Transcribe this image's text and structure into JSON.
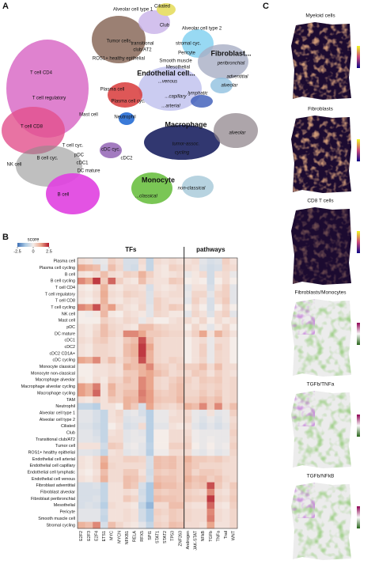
{
  "panel_a": {
    "label": "A",
    "clusters": [
      "Alveolar cell type 1",
      "Ciliated",
      "Club",
      "Alveolar cell type 2",
      "Tumor cells",
      "transitional",
      "club/AT2",
      "stromal cyc.",
      "Fibroblast...",
      "peribronchial",
      "ROS1+ healthy epithelial",
      "Pericyte",
      "Smooth muscle",
      "Mesothelial",
      "adventitial",
      "Endothelial cell...",
      "alveolar",
      "...venous",
      "T cell CD4",
      "Plasma cell",
      "...capillary",
      "T cell regulatory",
      "Plasma cell cyc.",
      "...arterial",
      "lymphatic",
      "Neutrophil",
      "Mast cell",
      "T cell CD8",
      "T cell cyc.",
      "Macrophage",
      "pDC",
      "cDC cyc.",
      "alveolar",
      "tumor-assoc.",
      "NK cell",
      "cDC1",
      "cycling",
      "B cell cyc.",
      "DC mature",
      "cDC2",
      "Monocyte",
      "non-classical",
      "...classical",
      "B cell"
    ]
  },
  "panel_b": {
    "label": "B",
    "colorbar_title": "score",
    "colorbar_lim": [
      -2.5,
      2.5
    ],
    "colorbar_ticks": [
      -2.5,
      0,
      2.5
    ],
    "colormap": [
      "#3a6db3",
      "#a9c8e3",
      "#f5ede9",
      "#eaa48a",
      "#b2182b"
    ],
    "column_groups": [
      {
        "name": "TFs",
        "columns": [
          "E2F2",
          "E2F3",
          "E2F4",
          "ETS1",
          "MYC",
          "MYCN",
          "NFKB1",
          "RELA",
          "RFX5",
          "SPI1",
          "STAT1",
          "STAT2",
          "TP53",
          "ZNF263"
        ]
      },
      {
        "name": "pathways",
        "columns": [
          "Androgen",
          "JAK-STAT",
          "NFkB",
          "TGFb",
          "TNFa",
          "Trail",
          "WNT"
        ]
      }
    ],
    "rows": [
      "Plasma cell",
      "Plasma cell cycling",
      "B cell",
      "B cell cycling",
      "T cell CD4",
      "T cell regulatory",
      "T cell CD8",
      "T cell cycling",
      "NK cell",
      "Mast cell",
      "pDC",
      "DC mature",
      "cDC1",
      "cDC2",
      "cDC2 CD1A+",
      "cDC cycling",
      "Monocyte classical",
      "Monocyte non-classical",
      "Macrophage alveolar",
      "Macrophage alveolar cycling",
      "Macrophage cycling",
      "TAM",
      "Neutrophil",
      "Alveolar cell type 1",
      "Alveolar cell type 2",
      "Ciliated",
      "Club",
      "Transitional club/AT2",
      "Tumor cell",
      "ROS1+ healthy epithelial",
      "Endothelial cell arterial",
      "Endothelial cell capillary",
      "Endothelial cell lymphatic",
      "Endothelial cell venous",
      "Fibroblast adventitial",
      "Fibroblast alveolar",
      "Fibroblast peribronchial",
      "Mesothelial",
      "Pericyte",
      "Smooth muscle cell",
      "Stromal cycling"
    ],
    "values": [
      [
        0.3,
        0.2,
        -0.3,
        -0.2,
        0.5,
        0.3,
        -0.5,
        -0.5,
        0.3,
        -0.8,
        0.3,
        0.2,
        0.3,
        0.2,
        0.2,
        0.3,
        -0.3,
        -0.5,
        -0.4,
        0.5,
        0.2
      ],
      [
        1.2,
        1,
        0.8,
        -0.3,
        0.8,
        0.4,
        -0.5,
        -0.6,
        0.2,
        -0.8,
        0.2,
        0.1,
        0.5,
        0.4,
        0.3,
        0.2,
        -0.4,
        -0.6,
        -0.5,
        0.4,
        0.3
      ],
      [
        0.2,
        0.1,
        0.3,
        0.8,
        0.3,
        0.2,
        0.5,
        0.4,
        1,
        0.5,
        0.2,
        0.1,
        0.2,
        0.3,
        -0.2,
        0.1,
        0.3,
        -0.6,
        0.2,
        0.3,
        -0.2
      ],
      [
        1.5,
        1.2,
        2.2,
        0.6,
        1.8,
        0.5,
        0.2,
        0.1,
        0.8,
        0.3,
        0.2,
        0.2,
        0.6,
        0.5,
        0,
        0.1,
        0,
        -0.6,
        0,
        0.3,
        0
      ],
      [
        0.1,
        0,
        0.2,
        1,
        0.2,
        0.1,
        0.3,
        0.3,
        0.2,
        -0.5,
        0.2,
        0.1,
        0.2,
        0.3,
        -0.3,
        0.2,
        0.2,
        -0.5,
        0.2,
        0.5,
        -0.3
      ],
      [
        0.2,
        0.1,
        0.3,
        1.1,
        0.3,
        0.2,
        0.5,
        0.4,
        0.3,
        -0.4,
        0.3,
        0.2,
        0.3,
        0.3,
        -0.2,
        0.4,
        0.4,
        -0.3,
        0.4,
        0.5,
        -0.3
      ],
      [
        0.1,
        0,
        0.2,
        1,
        0.2,
        0.1,
        0.3,
        0.2,
        0.3,
        -0.4,
        0.5,
        0.3,
        0.2,
        0.2,
        -0.3,
        0.5,
        0.2,
        -0.5,
        0.3,
        0.6,
        -0.3
      ],
      [
        1.5,
        1.3,
        2,
        0.8,
        1.3,
        0.4,
        0.2,
        0.1,
        0.4,
        -0.3,
        0.5,
        0.3,
        0.6,
        0.5,
        0,
        0.3,
        0,
        -0.5,
        0,
        0.4,
        0
      ],
      [
        0,
        -0.1,
        0.1,
        0.9,
        0.1,
        0,
        0.3,
        0.2,
        0.1,
        -0.3,
        0.4,
        0.3,
        0.1,
        0.1,
        -0.3,
        0.4,
        0.2,
        -0.4,
        0.3,
        0.5,
        -0.3
      ],
      [
        0,
        0,
        0,
        0.5,
        0.3,
        0.2,
        0.4,
        0.3,
        -0.2,
        0.2,
        0,
        0,
        0.2,
        0.3,
        0.3,
        0.1,
        0.4,
        0,
        0.3,
        0.1,
        0.2
      ],
      [
        0.2,
        0.1,
        0.3,
        0.8,
        0.4,
        0.3,
        0.2,
        0.1,
        0.8,
        0.8,
        0.5,
        0.4,
        0.3,
        0.3,
        0,
        0.4,
        0.1,
        -0.3,
        0.1,
        0.4,
        0
      ],
      [
        0.2,
        0.1,
        0.4,
        0.8,
        0.5,
        0.3,
        1.5,
        1.5,
        1.2,
        0.6,
        0.6,
        0.5,
        0.4,
        0.4,
        0.2,
        0.5,
        1.2,
        0.2,
        1,
        0.5,
        0.2
      ],
      [
        0.3,
        0.2,
        0.5,
        0.6,
        0.3,
        0.2,
        0.6,
        0.8,
        2,
        0.8,
        0.4,
        0.3,
        0.3,
        0.3,
        0,
        0.2,
        0.3,
        -0.2,
        0.3,
        0.3,
        0
      ],
      [
        0.2,
        0.1,
        0.4,
        0.4,
        0.3,
        0.2,
        0.8,
        1,
        2.2,
        1.2,
        0.4,
        0.3,
        0.3,
        0.3,
        0,
        0.2,
        0.5,
        -0.2,
        0.5,
        0.3,
        0
      ],
      [
        0.2,
        0.1,
        0.4,
        0.4,
        0.3,
        0.2,
        0.8,
        1,
        2.2,
        1,
        0.4,
        0.3,
        0.3,
        0.3,
        0,
        0.2,
        0.5,
        -0.2,
        0.4,
        0.3,
        0
      ],
      [
        1.2,
        1,
        1.5,
        0.4,
        0.8,
        0.3,
        0.6,
        0.8,
        2,
        1,
        0.4,
        0.3,
        0.5,
        0.4,
        0,
        0.2,
        0.4,
        -0.2,
        0.4,
        0.3,
        0
      ],
      [
        0,
        0,
        0.2,
        0.2,
        0.3,
        0.2,
        1,
        0.8,
        1,
        1.5,
        0.6,
        0.5,
        0.3,
        0.5,
        0.5,
        0.5,
        0.8,
        0.3,
        0.8,
        0.3,
        0.3
      ],
      [
        0,
        0,
        0.2,
        0.2,
        0.3,
        0.2,
        0.6,
        0.6,
        1,
        1.2,
        0.8,
        0.6,
        0.3,
        0.4,
        0.3,
        0.6,
        0.5,
        0.2,
        0.5,
        0.3,
        0.2
      ],
      [
        0.1,
        0,
        0.3,
        0.1,
        0.5,
        0.4,
        0.8,
        0.6,
        1.5,
        1.2,
        0.4,
        0.3,
        0.5,
        0.7,
        0.5,
        0.3,
        0.6,
        0.5,
        0.6,
        0.3,
        0.4
      ],
      [
        1.3,
        1,
        1.6,
        0.2,
        1,
        0.5,
        0.6,
        0.6,
        1.5,
        1.2,
        0.4,
        0.3,
        0.6,
        0.8,
        0.4,
        0.3,
        0.5,
        0.4,
        0.5,
        0.3,
        0.4
      ],
      [
        1.3,
        1,
        1.8,
        0.2,
        0.9,
        0.5,
        0.8,
        0.8,
        1.6,
        1.3,
        0.6,
        0.5,
        0.6,
        0.8,
        0.4,
        0.4,
        0.6,
        0.4,
        0.6,
        0.3,
        0.4
      ],
      [
        0.2,
        0.1,
        0.4,
        0.2,
        0.6,
        0.5,
        1,
        0.9,
        1.5,
        1.3,
        0.7,
        0.6,
        0.6,
        0.9,
        0.5,
        0.5,
        0.8,
        0.6,
        0.8,
        0.3,
        0.4
      ],
      [
        -0.8,
        -0.8,
        -1,
        0.2,
        0.2,
        0,
        1,
        0.6,
        -0.5,
        1.2,
        0.5,
        0.4,
        0.3,
        0.5,
        1,
        0.8,
        1.5,
        0.6,
        1.5,
        0.4,
        0.8
      ],
      [
        -0.3,
        -0.3,
        -0.5,
        -0.8,
        0.2,
        0.4,
        -0.3,
        -0.2,
        -0.5,
        -1,
        -0.2,
        -0.2,
        0.2,
        0.3,
        0.3,
        -0.2,
        -0.3,
        0.2,
        -0.3,
        -0.2,
        0.5
      ],
      [
        -0.3,
        -0.3,
        -0.5,
        -0.8,
        0.2,
        0.3,
        -0.4,
        -0.3,
        -0.3,
        -1,
        -0.2,
        -0.2,
        0.3,
        0.3,
        0.4,
        -0.2,
        -0.4,
        -0.2,
        -0.4,
        -0.2,
        0.3
      ],
      [
        -0.4,
        -0.4,
        -0.6,
        -0.8,
        0,
        0.2,
        -0.5,
        -0.4,
        0.3,
        -1,
        -0.3,
        -0.3,
        0.2,
        0.1,
        0.2,
        -0.3,
        -0.5,
        -0.3,
        -0.5,
        -0.3,
        0.4
      ],
      [
        -0.3,
        -0.3,
        -0.5,
        -0.8,
        0.2,
        0.3,
        -0.3,
        -0.2,
        -0.3,
        -1,
        0,
        0,
        0.3,
        0.3,
        0.3,
        -0.1,
        -0.2,
        -0.2,
        -0.2,
        -0.2,
        0.5
      ],
      [
        -0.3,
        -0.3,
        -0.4,
        -0.8,
        0.3,
        0.3,
        -0.3,
        -0.2,
        -0.2,
        -1,
        0,
        0,
        0.3,
        0.3,
        0.4,
        -0.1,
        -0.2,
        -0.1,
        -0.2,
        -0.2,
        0.4
      ],
      [
        0.2,
        0.2,
        0.2,
        -0.6,
        0.6,
        0.5,
        -0.2,
        -0.1,
        -0.3,
        -0.9,
        0,
        0,
        0.5,
        0.5,
        0.5,
        0,
        -0.2,
        0,
        -0.2,
        -0.1,
        0.5
      ],
      [
        -0.3,
        -0.3,
        -0.4,
        -0.8,
        0.2,
        0.3,
        -0.3,
        -0.2,
        -0.3,
        -1,
        -0.1,
        -0.1,
        0.3,
        0.3,
        0.3,
        -0.2,
        -0.3,
        -0.1,
        -0.3,
        -0.2,
        0.4
      ],
      [
        0.2,
        0.1,
        0.3,
        1,
        0.3,
        0.3,
        0.5,
        0.5,
        0.4,
        -0.5,
        0.8,
        0.7,
        0.8,
        0.5,
        1,
        0.6,
        0.6,
        0.5,
        0.6,
        0.4,
        0.3
      ],
      [
        0.2,
        0.1,
        0.3,
        1.2,
        0.4,
        0.3,
        0.3,
        0.3,
        0.3,
        -0.5,
        0.8,
        0.7,
        0.8,
        0.5,
        0.8,
        0.6,
        0.4,
        0.4,
        0.4,
        0.3,
        0.3
      ],
      [
        0.1,
        0,
        0.2,
        0.8,
        0.3,
        0.3,
        0.6,
        0.6,
        0.2,
        -0.6,
        0.6,
        0.5,
        0.6,
        0.5,
        0.8,
        0.4,
        0.6,
        0.6,
        0.5,
        0.3,
        0.3
      ],
      [
        0.2,
        0.1,
        0.3,
        1,
        0.3,
        0.3,
        0.8,
        0.7,
        0.4,
        -0.5,
        0.8,
        0.7,
        0.7,
        0.5,
        1,
        0.7,
        0.8,
        0.5,
        0.7,
        0.4,
        0.3
      ],
      [
        -0.5,
        -0.5,
        -0.4,
        -0.8,
        0.2,
        0.2,
        0.8,
        0.6,
        -0.5,
        -1.2,
        1,
        0.8,
        0.8,
        0.6,
        0.8,
        0.6,
        0.7,
        2,
        0.6,
        0.3,
        0.6
      ],
      [
        -0.5,
        -0.5,
        -0.5,
        -0.8,
        0.2,
        0.2,
        0.3,
        0.2,
        -0.6,
        -1.2,
        0.6,
        0.5,
        0.6,
        0.6,
        0.5,
        0.4,
        0.3,
        1.5,
        0.3,
        0.2,
        0.5
      ],
      [
        -0.5,
        -0.5,
        -0.4,
        -0.8,
        0.2,
        0.2,
        0.6,
        0.4,
        -0.5,
        -1.2,
        0.8,
        0.7,
        0.7,
        0.6,
        0.6,
        0.5,
        0.5,
        2.2,
        0.4,
        0.3,
        0.6
      ],
      [
        -0.5,
        -0.4,
        -0.5,
        -1,
        0.3,
        0.2,
        0.2,
        0.1,
        -0.8,
        -1.5,
        0.3,
        0.3,
        0.8,
        0.8,
        0.3,
        0.2,
        0.2,
        1.8,
        0.2,
        0.1,
        0.5
      ],
      [
        -0.3,
        -0.3,
        -0.3,
        -0.7,
        0.2,
        0.2,
        0.3,
        0.2,
        -0.6,
        -1.1,
        0.5,
        0.4,
        0.6,
        0.5,
        0.4,
        0.3,
        0.3,
        1.5,
        0.3,
        0.2,
        0.4
      ],
      [
        -0.3,
        -0.3,
        -0.3,
        -0.8,
        0.2,
        0.2,
        0.3,
        0.2,
        -0.6,
        -1.1,
        0.4,
        0.3,
        0.6,
        0.5,
        0.4,
        0.3,
        0.3,
        1.6,
        0.3,
        0.2,
        0.4
      ],
      [
        1,
        0.8,
        1.5,
        -0.5,
        0.8,
        0.4,
        0.2,
        0.1,
        -0.3,
        -0.8,
        0.5,
        0.4,
        0.8,
        0.7,
        0.3,
        0.3,
        0.2,
        1.2,
        0.2,
        0.2,
        0.4
      ]
    ]
  },
  "panel_c": {
    "label": "C",
    "maps": [
      "Myeloid cells",
      "Fibroblasts",
      "CD8 T cells",
      "Fibroblasts/Monocytes",
      "TGFb/TNFa",
      "TGFb/NFkB"
    ]
  }
}
